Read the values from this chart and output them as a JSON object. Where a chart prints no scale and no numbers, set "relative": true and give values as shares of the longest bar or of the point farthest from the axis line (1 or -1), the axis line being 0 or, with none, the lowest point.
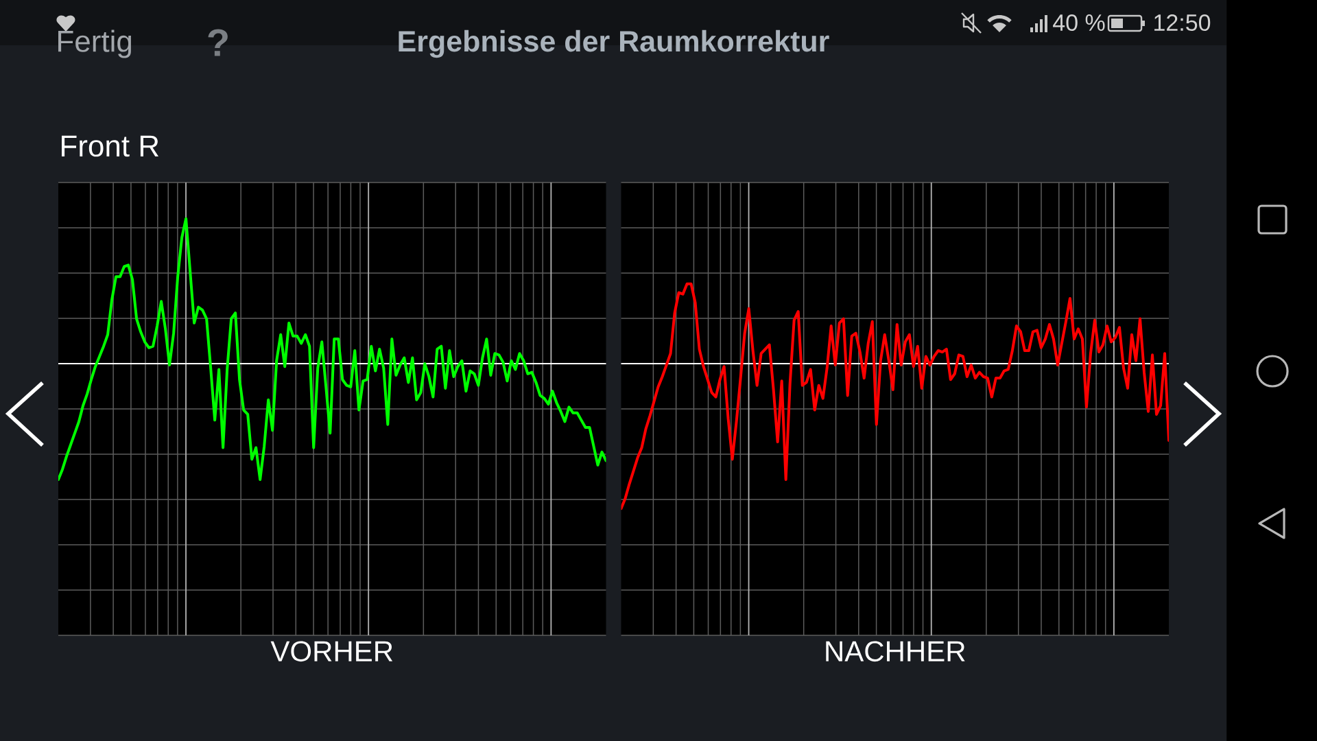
{
  "chart_data": [
    {
      "type": "line",
      "title": "Ergebnisse der Raumkorrektur",
      "subtitle": "Front R",
      "xlabel": "VORHER",
      "annotations": [
        "Fertig",
        "?",
        "40 %",
        "12:50"
      ],
      "relative": true,
      "grid": true,
      "categories": [
        null,
        null,
        null,
        null,
        null,
        null,
        null,
        null,
        null,
        null,
        null,
        null,
        null,
        null,
        null,
        null,
        null,
        null,
        null,
        null,
        null,
        null,
        null,
        null,
        null,
        null,
        null,
        null,
        null,
        null,
        null,
        null,
        null,
        null,
        null,
        null,
        null,
        null,
        null,
        null,
        null,
        null,
        null,
        null,
        null,
        null,
        null,
        null,
        null,
        null,
        null,
        null,
        null,
        null,
        null,
        null,
        null,
        null,
        null,
        null,
        null,
        null,
        null,
        null,
        null,
        null,
        null,
        null,
        null,
        null,
        null,
        null,
        null,
        null,
        null,
        null,
        null,
        null,
        null,
        null,
        null,
        null,
        null,
        null,
        null,
        null,
        null,
        null,
        null,
        null,
        null,
        null,
        null,
        null,
        null,
        null,
        null,
        null,
        null,
        null,
        null,
        null,
        null,
        null,
        null,
        null,
        null,
        null,
        null,
        null,
        null,
        null,
        null,
        null,
        null,
        null,
        null,
        null,
        null,
        null,
        null,
        null,
        null,
        null,
        null,
        null,
        null,
        null,
        null,
        null,
        null,
        null,
        null,
        null
      ],
      "series": [
        {
          "color": "#00ff00",
          "values": [
            -0.8,
            -0.73,
            -0.64,
            -0.56,
            -0.48,
            -0.4,
            -0.29,
            -0.21,
            -0.11,
            -0.02,
            0.05,
            0.12,
            0.2,
            0.44,
            0.6,
            0.6,
            0.67,
            0.68,
            0.58,
            0.31,
            0.22,
            0.15,
            0.11,
            0.12,
            0.26,
            0.43,
            0.24,
            -0.01,
            0.21,
            0.6,
            0.87,
            1.0,
            0.64,
            0.28,
            0.39,
            0.37,
            0.31,
            -0.03,
            -0.39,
            -0.04,
            -0.58,
            -0.04,
            0.31,
            0.35,
            -0.11,
            -0.32,
            -0.35,
            -0.66,
            -0.58,
            -0.8,
            -0.57,
            -0.25,
            -0.46,
            0.02,
            0.2,
            -0.02,
            0.28,
            0.19,
            0.19,
            0.14,
            0.2,
            0.12,
            -0.58,
            -0.03,
            0.15,
            -0.16,
            -0.48,
            0.17,
            0.17,
            -0.11,
            -0.15,
            -0.16,
            0.09,
            -0.32,
            -0.12,
            -0.11,
            0.12,
            -0.05,
            0.1,
            -0.03,
            -0.42,
            0.17,
            -0.08,
            -0.01,
            0.04,
            -0.13,
            0.04,
            -0.25,
            -0.2,
            0.0,
            -0.09,
            -0.23,
            0.1,
            0.12,
            -0.17,
            0.09,
            -0.09,
            -0.02,
            0.02,
            -0.19,
            -0.05,
            -0.07,
            -0.15,
            0.04,
            0.17,
            -0.08,
            0.07,
            0.06,
            0.01,
            -0.12,
            0.02,
            -0.04,
            0.07,
            0.02,
            -0.07,
            -0.06,
            -0.13,
            -0.22,
            -0.24,
            -0.28,
            -0.19,
            -0.27,
            -0.33,
            -0.4,
            -0.3,
            -0.34,
            -0.34,
            -0.39,
            -0.44,
            -0.44,
            -0.57,
            -0.7,
            -0.61,
            -0.67
          ]
        }
      ]
    },
    {
      "type": "line",
      "xlabel": "NACHHER",
      "relative": true,
      "grid": true,
      "categories": [
        null,
        null,
        null,
        null,
        null,
        null,
        null,
        null,
        null,
        null,
        null,
        null,
        null,
        null,
        null,
        null,
        null,
        null,
        null,
        null,
        null,
        null,
        null,
        null,
        null,
        null,
        null,
        null,
        null,
        null,
        null,
        null,
        null,
        null,
        null,
        null,
        null,
        null,
        null,
        null,
        null,
        null,
        null,
        null,
        null,
        null,
        null,
        null,
        null,
        null,
        null,
        null,
        null,
        null,
        null,
        null,
        null,
        null,
        null,
        null,
        null,
        null,
        null,
        null,
        null,
        null,
        null,
        null,
        null,
        null,
        null,
        null,
        null,
        null,
        null,
        null,
        null,
        null,
        null,
        null,
        null,
        null,
        null,
        null,
        null,
        null,
        null,
        null,
        null,
        null,
        null,
        null,
        null,
        null,
        null,
        null,
        null,
        null,
        null,
        null,
        null,
        null,
        null,
        null,
        null,
        null,
        null,
        null,
        null,
        null,
        null,
        null,
        null,
        null,
        null,
        null,
        null,
        null,
        null,
        null,
        null,
        null,
        null,
        null,
        null,
        null,
        null,
        null,
        null,
        null,
        null,
        null,
        null,
        null
      ],
      "series": [
        {
          "color": "#ff0000",
          "values": [
            -1.0,
            -0.93,
            -0.83,
            -0.74,
            -0.65,
            -0.58,
            -0.45,
            -0.36,
            -0.26,
            -0.16,
            -0.09,
            -0.01,
            0.07,
            0.35,
            0.49,
            0.48,
            0.55,
            0.55,
            0.42,
            0.1,
            -0.02,
            -0.11,
            -0.2,
            -0.23,
            -0.11,
            -0.02,
            -0.38,
            -0.66,
            -0.4,
            -0.1,
            0.21,
            0.38,
            0.09,
            -0.15,
            0.07,
            0.1,
            0.13,
            -0.18,
            -0.54,
            -0.12,
            -0.8,
            -0.14,
            0.3,
            0.36,
            -0.15,
            -0.13,
            -0.04,
            -0.32,
            -0.15,
            -0.24,
            -0.03,
            0.26,
            -0.01,
            0.28,
            0.31,
            -0.22,
            0.19,
            0.21,
            0.08,
            -0.1,
            0.14,
            0.29,
            -0.42,
            0.02,
            0.2,
            0.02,
            -0.18,
            0.27,
            -0.01,
            0.15,
            0.2,
            -0.02,
            0.12,
            -0.17,
            0.05,
            -0.01,
            0.05,
            0.09,
            0.08,
            0.1,
            -0.11,
            -0.07,
            0.06,
            0.05,
            -0.09,
            -0.01,
            -0.1,
            -0.06,
            -0.09,
            -0.1,
            -0.23,
            -0.1,
            -0.1,
            -0.05,
            -0.04,
            0.09,
            0.26,
            0.22,
            0.09,
            0.09,
            0.22,
            0.23,
            0.11,
            0.17,
            0.27,
            0.17,
            -0.01,
            0.14,
            0.29,
            0.45,
            0.17,
            0.24,
            0.17,
            -0.3,
            0.07,
            0.3,
            0.08,
            0.13,
            0.26,
            0.15,
            0.18,
            0.25,
            -0.03,
            -0.17,
            0.2,
            0.02,
            0.31,
            -0.06,
            -0.33,
            0.06,
            -0.35,
            -0.29,
            0.07,
            -0.53
          ]
        }
      ]
    }
  ]
}
